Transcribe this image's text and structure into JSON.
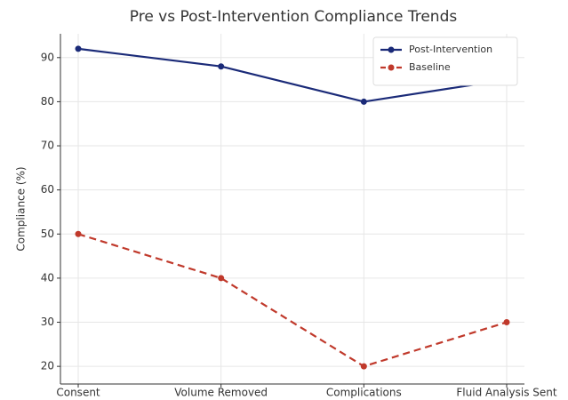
{
  "chart_data": {
    "type": "line",
    "title": "Pre vs Post-Intervention Compliance Trends",
    "ylabel": "Compliance (%)",
    "categories": [
      "Consent",
      "Volume Removed",
      "Complications",
      "Fluid Analysis Sent"
    ],
    "series": [
      {
        "name": "Post-Intervention",
        "color": "#1a2a78",
        "linestyle": "solid",
        "values": [
          92,
          88,
          80,
          85
        ]
      },
      {
        "name": "Baseline",
        "color": "#c0392b",
        "linestyle": "dashed",
        "values": [
          50,
          40,
          20,
          30
        ]
      }
    ],
    "ylim": [
      16,
      95.4
    ],
    "yticks": [
      20,
      30,
      40,
      50,
      60,
      70,
      80,
      90
    ],
    "grid": true,
    "legend": "upper right"
  }
}
